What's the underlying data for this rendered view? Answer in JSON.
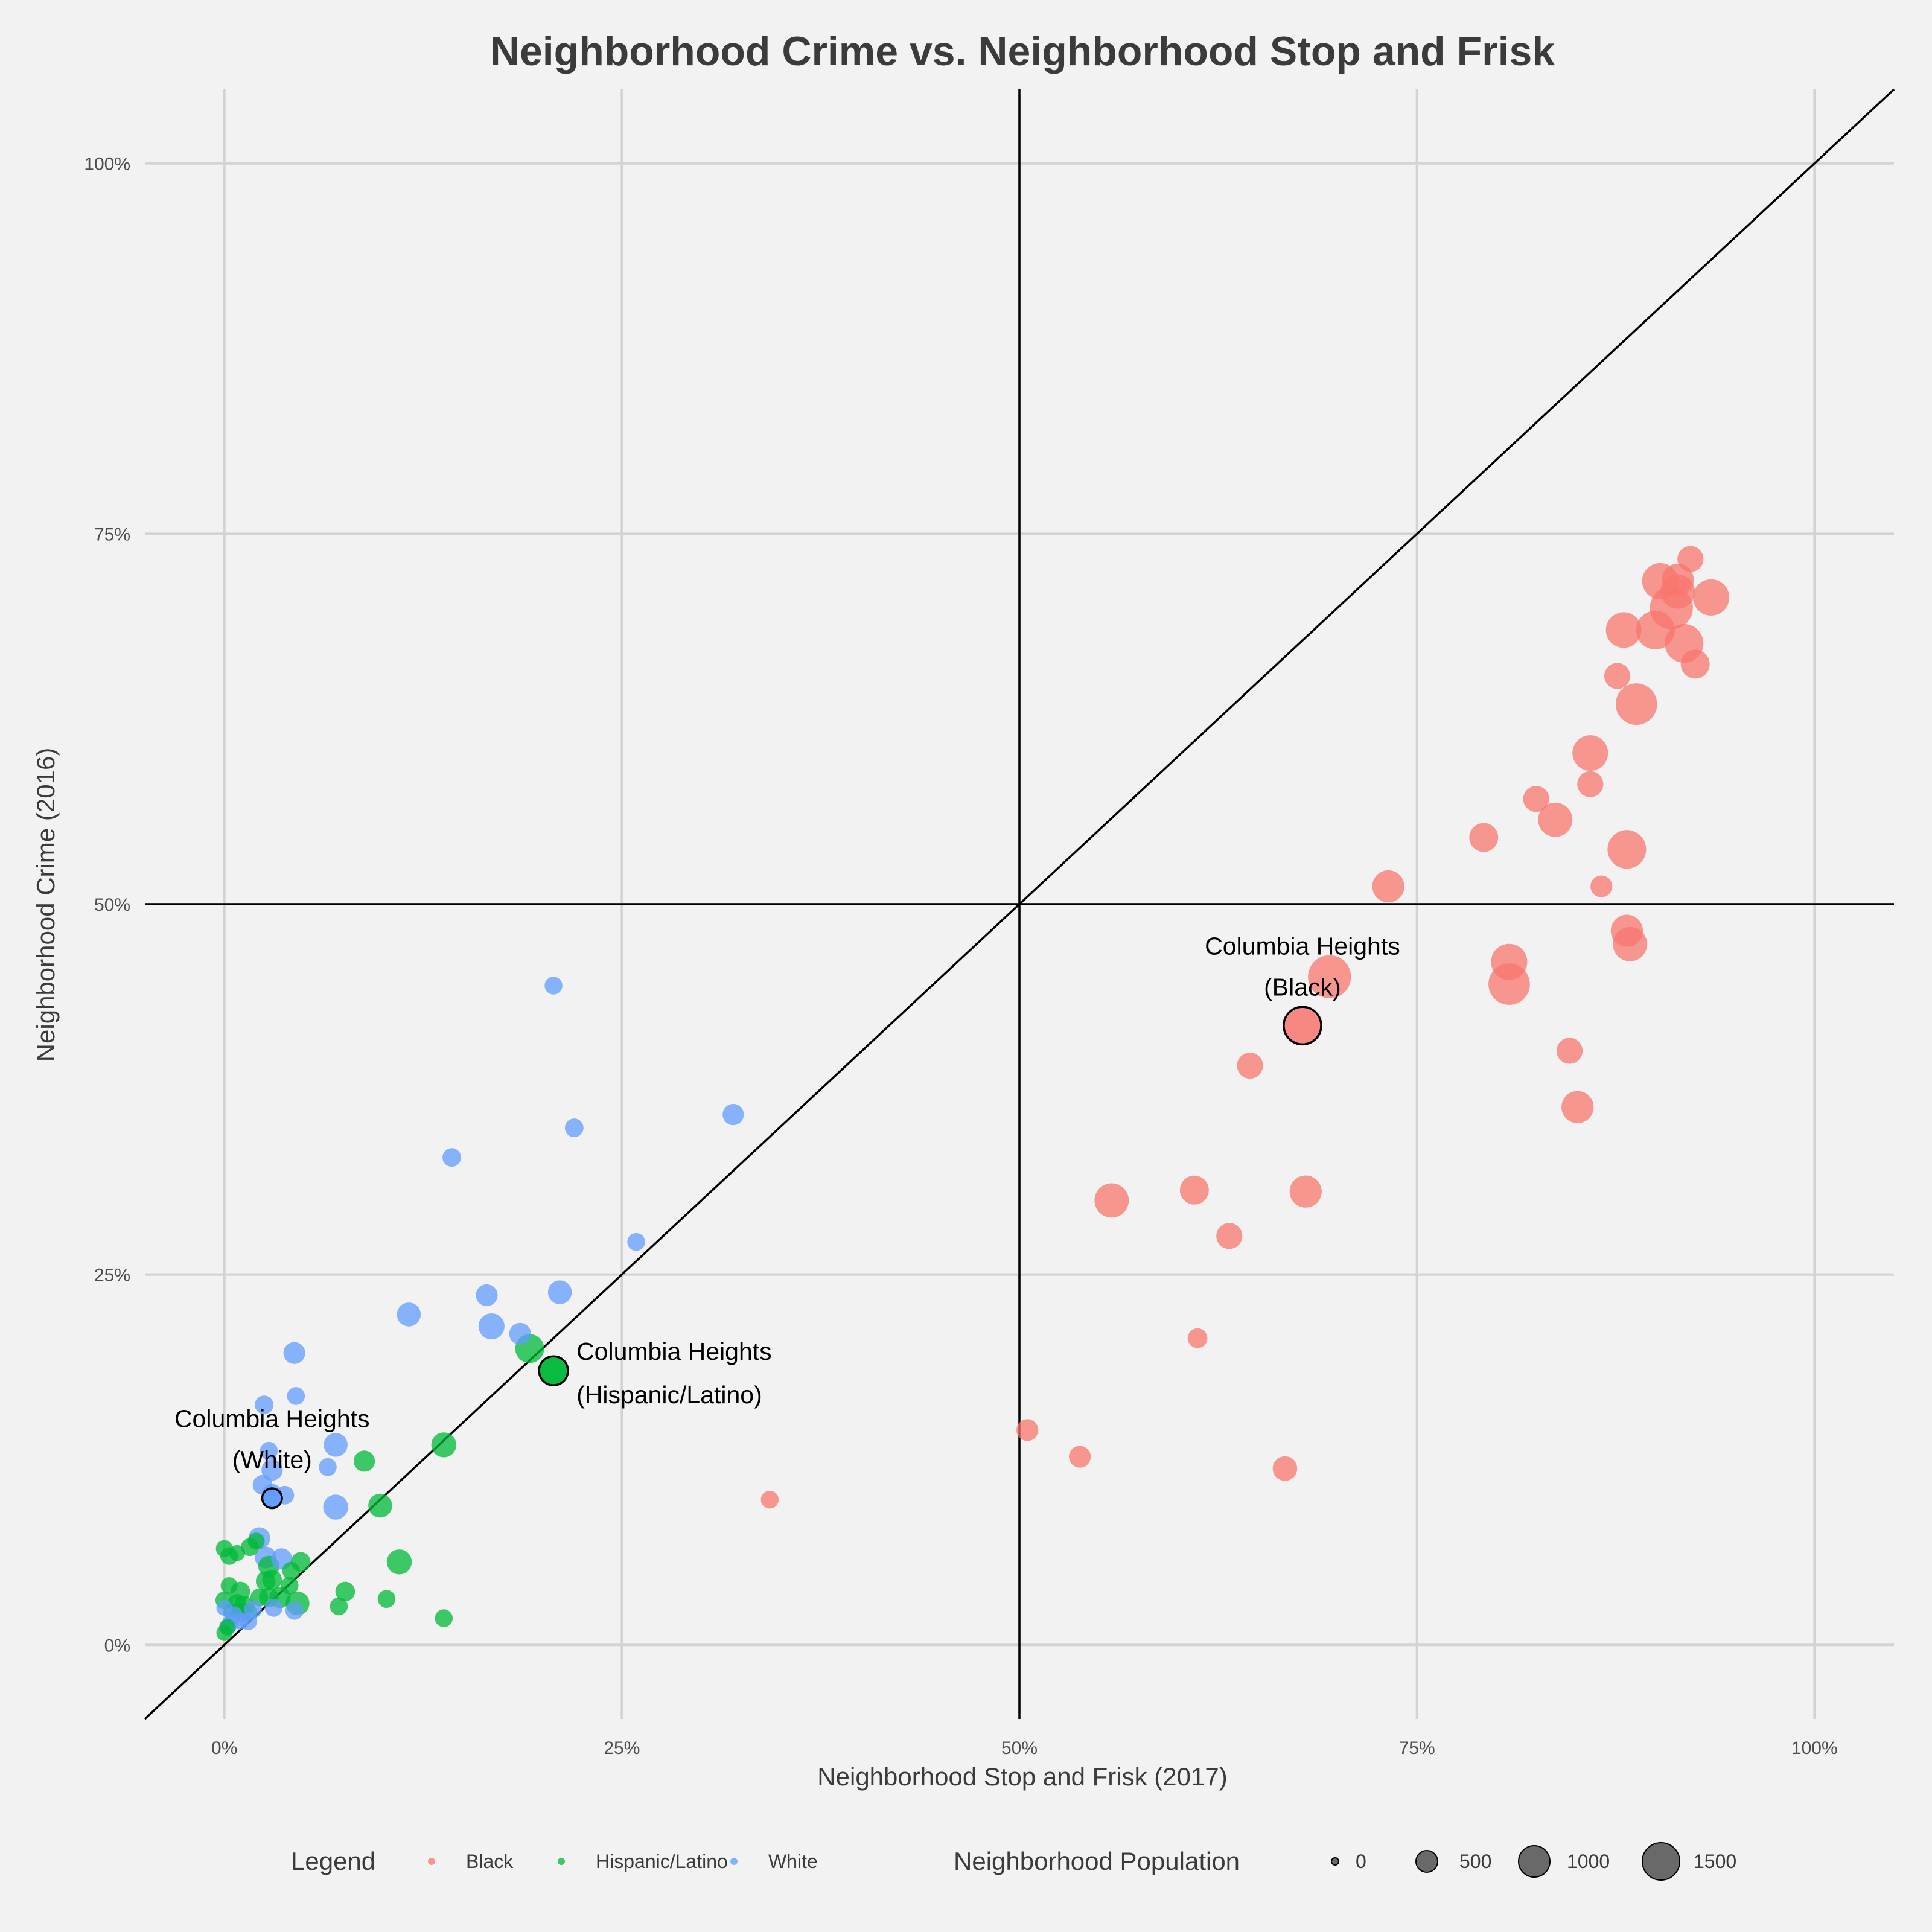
{
  "chart_data": {
    "type": "scatter",
    "title": "Neighborhood Crime vs. Neighborhood Stop and Frisk",
    "xlabel": "Neighborhood Stop and Frisk (2017)",
    "ylabel": "Neighborhood Crime (2016)",
    "xlim": [
      -0.05,
      1.05
    ],
    "ylim": [
      -0.05,
      1.05
    ],
    "x_ticks": [
      0,
      0.25,
      0.5,
      0.75,
      1.0
    ],
    "x_tick_labels": [
      "0%",
      "25%",
      "50%",
      "75%",
      "100%"
    ],
    "y_ticks": [
      0,
      0.25,
      0.5,
      0.75,
      1.0
    ],
    "y_tick_labels": [
      "0%",
      "25%",
      "50%",
      "75%",
      "100%"
    ],
    "grid": true,
    "reference_lines": {
      "diagonal": "y = x",
      "vertical_x": 0.5,
      "horizontal_y": 0.5
    },
    "colors": {
      "Black": "#f8766d",
      "Hispanic/Latino": "#00ba38",
      "White": "#619cff"
    },
    "series": [
      {
        "name": "Black",
        "points": [
          [
            0.343,
            0.098,
            100
          ],
          [
            0.505,
            0.145,
            220
          ],
          [
            0.538,
            0.127,
            220
          ],
          [
            0.667,
            0.119,
            330
          ],
          [
            0.612,
            0.207,
            150
          ],
          [
            0.558,
            0.3,
            900
          ],
          [
            0.61,
            0.307,
            550
          ],
          [
            0.632,
            0.276,
            400
          ],
          [
            0.68,
            0.306,
            750
          ],
          [
            0.645,
            0.391,
            400
          ],
          [
            0.695,
            0.451,
            1650
          ],
          [
            0.732,
            0.512,
            750
          ],
          [
            0.792,
            0.545,
            550
          ],
          [
            0.808,
            0.446,
            1500
          ],
          [
            0.808,
            0.461,
            1050
          ],
          [
            0.825,
            0.571,
            400
          ],
          [
            0.837,
            0.557,
            900
          ],
          [
            0.846,
            0.401,
            400
          ],
          [
            0.851,
            0.363,
            750
          ],
          [
            0.859,
            0.602,
            1000
          ],
          [
            0.859,
            0.581,
            400
          ],
          [
            0.866,
            0.512,
            220
          ],
          [
            0.876,
            0.654,
            400
          ],
          [
            0.88,
            0.685,
            1000
          ],
          [
            0.882,
            0.537,
            1250
          ],
          [
            0.882,
            0.482,
            750
          ],
          [
            0.884,
            0.473,
            900
          ],
          [
            0.888,
            0.635,
            1500
          ],
          [
            0.9,
            0.685,
            1250
          ],
          [
            0.903,
            0.718,
            1050
          ],
          [
            0.91,
            0.7,
            1650
          ],
          [
            0.914,
            0.711,
            900
          ],
          [
            0.914,
            0.719,
            750
          ],
          [
            0.918,
            0.676,
            1250
          ],
          [
            0.922,
            0.733,
            400
          ],
          [
            0.925,
            0.662,
            550
          ],
          [
            0.935,
            0.707,
            1050
          ]
        ]
      },
      {
        "name": "Hispanic/Latino",
        "points": [
          [
            0.0,
            0.008,
            60
          ],
          [
            0.0,
            0.03,
            100
          ],
          [
            0.0,
            0.065,
            80
          ],
          [
            0.002,
            0.012,
            60
          ],
          [
            0.003,
            0.04,
            80
          ],
          [
            0.003,
            0.06,
            100
          ],
          [
            0.005,
            0.022,
            100
          ],
          [
            0.008,
            0.028,
            120
          ],
          [
            0.008,
            0.062,
            60
          ],
          [
            0.01,
            0.022,
            150
          ],
          [
            0.01,
            0.036,
            150
          ],
          [
            0.012,
            0.026,
            200
          ],
          [
            0.015,
            0.022,
            100
          ],
          [
            0.016,
            0.066,
            100
          ],
          [
            0.02,
            0.07,
            80
          ],
          [
            0.022,
            0.032,
            100
          ],
          [
            0.026,
            0.043,
            150
          ],
          [
            0.028,
            0.032,
            150
          ],
          [
            0.028,
            0.053,
            200
          ],
          [
            0.03,
            0.044,
            150
          ],
          [
            0.035,
            0.032,
            200
          ],
          [
            0.041,
            0.04,
            100
          ],
          [
            0.042,
            0.05,
            100
          ],
          [
            0.046,
            0.028,
            300
          ],
          [
            0.048,
            0.056,
            150
          ],
          [
            0.072,
            0.026,
            100
          ],
          [
            0.076,
            0.036,
            150
          ],
          [
            0.088,
            0.124,
            200
          ],
          [
            0.098,
            0.094,
            300
          ],
          [
            0.102,
            0.031,
            100
          ],
          [
            0.11,
            0.056,
            350
          ],
          [
            0.138,
            0.018,
            100
          ],
          [
            0.138,
            0.135,
            350
          ],
          [
            0.192,
            0.2,
            550
          ],
          [
            0.207,
            0.185,
            550
          ]
        ]
      },
      {
        "name": "White",
        "points": [
          [
            0.0,
            0.025,
            60
          ],
          [
            0.002,
            0.012,
            80
          ],
          [
            0.004,
            0.015,
            80
          ],
          [
            0.006,
            0.02,
            100
          ],
          [
            0.01,
            0.016,
            80
          ],
          [
            0.015,
            0.016,
            100
          ],
          [
            0.018,
            0.024,
            100
          ],
          [
            0.022,
            0.072,
            220
          ],
          [
            0.024,
            0.108,
            150
          ],
          [
            0.025,
            0.162,
            120
          ],
          [
            0.026,
            0.059,
            220
          ],
          [
            0.028,
            0.131,
            100
          ],
          [
            0.03,
            0.102,
            150
          ],
          [
            0.03,
            0.118,
            200
          ],
          [
            0.031,
            0.025,
            100
          ],
          [
            0.036,
            0.058,
            200
          ],
          [
            0.038,
            0.101,
            120
          ],
          [
            0.044,
            0.197,
            220
          ],
          [
            0.044,
            0.023,
            100
          ],
          [
            0.045,
            0.168,
            100
          ],
          [
            0.065,
            0.12,
            100
          ],
          [
            0.07,
            0.093,
            350
          ],
          [
            0.07,
            0.135,
            300
          ],
          [
            0.116,
            0.223,
            300
          ],
          [
            0.143,
            0.329,
            120
          ],
          [
            0.165,
            0.236,
            220
          ],
          [
            0.168,
            0.215,
            400
          ],
          [
            0.186,
            0.21,
            220
          ],
          [
            0.207,
            0.445,
            100
          ],
          [
            0.211,
            0.238,
            300
          ],
          [
            0.22,
            0.349,
            120
          ],
          [
            0.259,
            0.272,
            100
          ],
          [
            0.32,
            0.358,
            200
          ],
          [
            0.03,
            0.099,
            150
          ]
        ]
      }
    ],
    "highlighted": [
      {
        "group": "Black",
        "x": 0.678,
        "y": 0.418,
        "size": 1150
      },
      {
        "group": "Hispanic/Latino",
        "x": 0.207,
        "y": 0.185,
        "size": 550
      },
      {
        "group": "White",
        "x": 0.03,
        "y": 0.099,
        "size": 150
      }
    ],
    "annotations": [
      {
        "x": 0.678,
        "y": 0.418,
        "lines": [
          "Columbia Heights",
          "(Black)"
        ],
        "anchor": "above"
      },
      {
        "x": 0.207,
        "y": 0.185,
        "lines": [
          "Columbia Heights",
          "(Hispanic/Latino)"
        ],
        "anchor": "right"
      },
      {
        "x": 0.03,
        "y": 0.099,
        "lines": [
          "Columbia Heights",
          "(White)"
        ],
        "anchor": "above"
      }
    ],
    "legend": {
      "placement": "bottom",
      "color_title": "Legend",
      "color_entries": [
        "Black",
        "Hispanic/Latino",
        "White"
      ],
      "size_title": "Neighborhood Population",
      "size_entries": [
        0,
        500,
        1000,
        1500
      ],
      "size_labels": [
        "0",
        "500",
        "1000",
        "1500"
      ]
    }
  }
}
